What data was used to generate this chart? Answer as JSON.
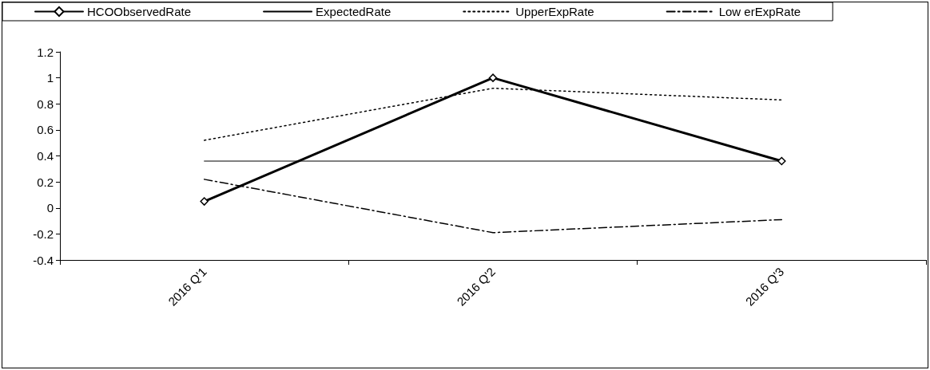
{
  "chart_data": {
    "type": "line",
    "categories": [
      "2016 Q'1",
      "2016 Q'2",
      "2016 Q'3"
    ],
    "series": [
      {
        "name": "HCOObservedRate",
        "color": "#000000",
        "values": [
          0.05,
          1.0,
          0.36
        ],
        "marker": "diamond",
        "line_style": "solid"
      },
      {
        "name": "ExpectedRate",
        "color": "#000000",
        "values": [
          0.36,
          0.36,
          0.36
        ],
        "marker": "none",
        "line_style": "solid"
      },
      {
        "name": "UpperExpRate",
        "color": "#000000",
        "values": [
          0.52,
          0.92,
          0.83
        ],
        "marker": "none",
        "line_style": "dotted"
      },
      {
        "name": "Low erExpRate",
        "color": "#000000",
        "values": [
          0.22,
          -0.19,
          -0.09
        ],
        "marker": "none",
        "line_style": "dashed"
      }
    ],
    "ylim": [
      -0.4,
      1.2
    ],
    "yticks": [
      -0.4,
      -0.2,
      0,
      0.2,
      0.4,
      0.6,
      0.8,
      1,
      1.2
    ],
    "grid": false,
    "legend": "top"
  }
}
